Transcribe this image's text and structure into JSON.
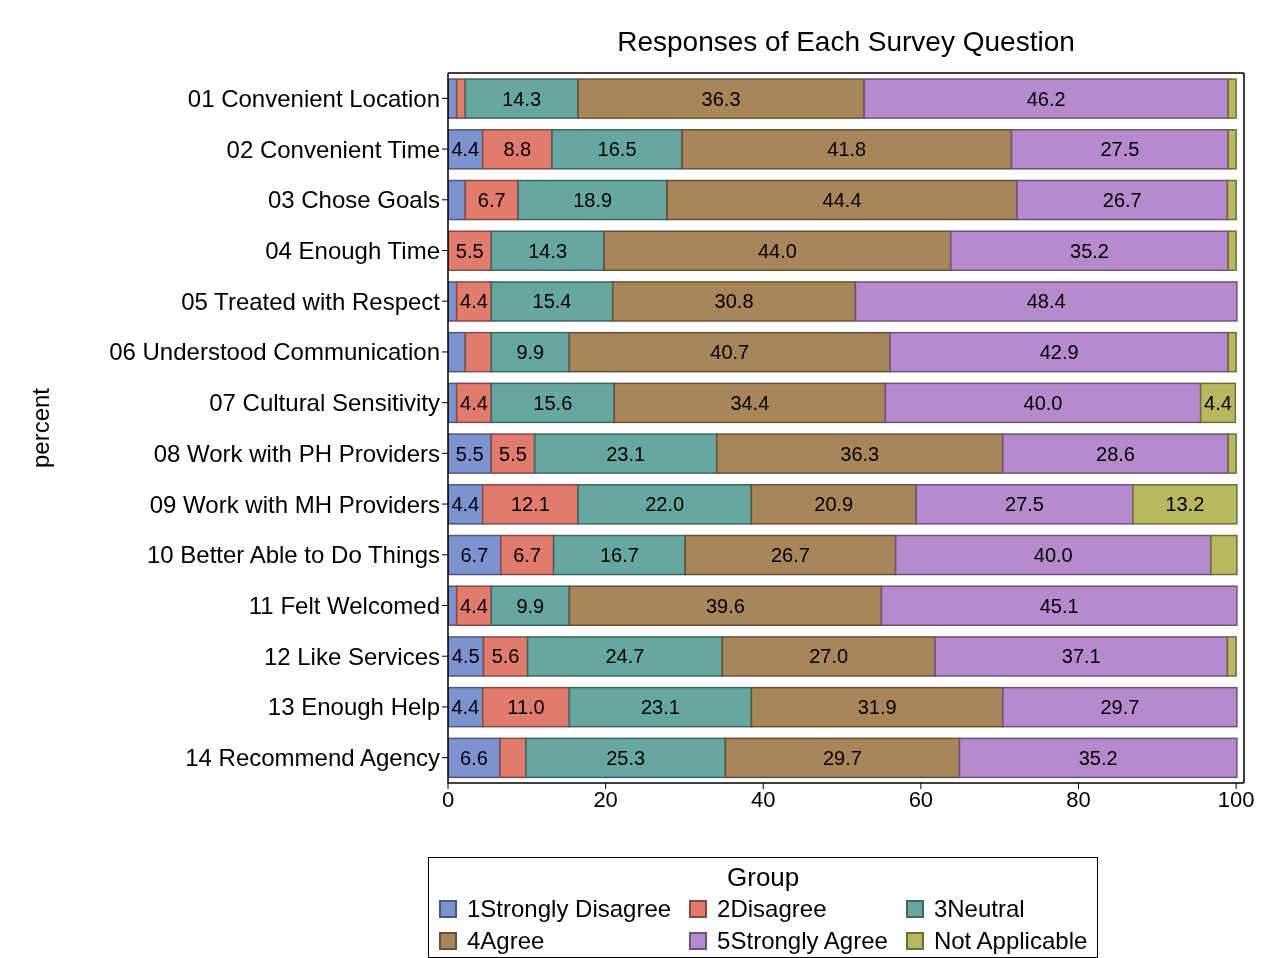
{
  "chart_data": {
    "type": "bar",
    "title": "Responses of Each Survey Question",
    "ylabel": "percent",
    "legend_title": "Group",
    "orientation": "horizontal",
    "stacked": true,
    "legend": "bottom",
    "xlim": [
      0,
      101
    ],
    "xticks": [
      0,
      20,
      40,
      60,
      80,
      100
    ],
    "categories": [
      "01 Convenient Location",
      "02 Convenient Time",
      "03 Chose Goals",
      "04 Enough Time",
      "05 Treated with Respect",
      "06 Understood Communication",
      "07 Cultural Sensitivity",
      "08 Work with PH Providers",
      "09 Work with MH Providers",
      "10 Better Able to Do Things",
      "11 Felt Welcomed",
      "12 Like Services",
      "13 Enough Help",
      "14 Recommend Agency"
    ],
    "series": [
      {
        "name": "1Strongly Disagree",
        "color": "#7c93d0",
        "values": [
          1.1,
          4.4,
          2.2,
          0,
          1.1,
          2.2,
          1.1,
          5.5,
          4.4,
          6.7,
          1.1,
          4.5,
          4.4,
          6.6
        ],
        "value_labels": [
          null,
          "4.4",
          null,
          null,
          null,
          null,
          null,
          "5.5",
          "4.4",
          "6.7",
          null,
          "4.5",
          "4.4",
          "6.6"
        ]
      },
      {
        "name": "2Disagree",
        "color": "#e07b6d",
        "values": [
          1.1,
          8.8,
          6.7,
          5.5,
          4.4,
          3.3,
          4.4,
          5.5,
          12.1,
          6.7,
          4.4,
          5.6,
          11.0,
          3.3
        ],
        "value_labels": [
          null,
          "8.8",
          "6.7",
          "5.5",
          "4.4",
          null,
          "4.4",
          "5.5",
          "12.1",
          "6.7",
          "4.4",
          "5.6",
          "11.0",
          null
        ]
      },
      {
        "name": "3Neutral",
        "color": "#66a8a0",
        "values": [
          14.3,
          16.5,
          18.9,
          14.3,
          15.4,
          9.9,
          15.6,
          23.1,
          22.0,
          16.7,
          9.9,
          24.7,
          23.1,
          25.3
        ],
        "value_labels": [
          "14.3",
          "16.5",
          "18.9",
          "14.3",
          "15.4",
          "9.9",
          "15.6",
          "23.1",
          "22.0",
          "16.7",
          "9.9",
          "24.7",
          "23.1",
          "25.3"
        ]
      },
      {
        "name": "4Agree",
        "color": "#a8865a",
        "values": [
          36.3,
          41.8,
          44.4,
          44.0,
          30.8,
          40.7,
          34.4,
          36.3,
          20.9,
          26.7,
          39.6,
          27.0,
          31.9,
          29.7
        ],
        "value_labels": [
          "36.3",
          "41.8",
          "44.4",
          "44.0",
          "30.8",
          "40.7",
          "34.4",
          "36.3",
          "20.9",
          "26.7",
          "39.6",
          "27.0",
          "31.9",
          "29.7"
        ]
      },
      {
        "name": "5Strongly Agree",
        "color": "#b68bcd",
        "values": [
          46.2,
          27.5,
          26.7,
          35.2,
          48.4,
          42.9,
          40.0,
          28.6,
          27.5,
          40.0,
          45.1,
          37.1,
          29.7,
          35.2
        ],
        "value_labels": [
          "46.2",
          "27.5",
          "26.7",
          "35.2",
          "48.4",
          "42.9",
          "40.0",
          "28.6",
          "27.5",
          "40.0",
          "45.1",
          "37.1",
          "29.7",
          "35.2"
        ]
      },
      {
        "name": "Not Applicable",
        "color": "#b8b860",
        "values": [
          1.0,
          1.0,
          1.1,
          1.0,
          0,
          1.0,
          4.4,
          1.0,
          13.2,
          3.3,
          0,
          1.1,
          0,
          0
        ],
        "value_labels": [
          null,
          null,
          null,
          null,
          null,
          null,
          "4.4",
          null,
          "13.2",
          null,
          null,
          null,
          null,
          null
        ]
      }
    ]
  }
}
